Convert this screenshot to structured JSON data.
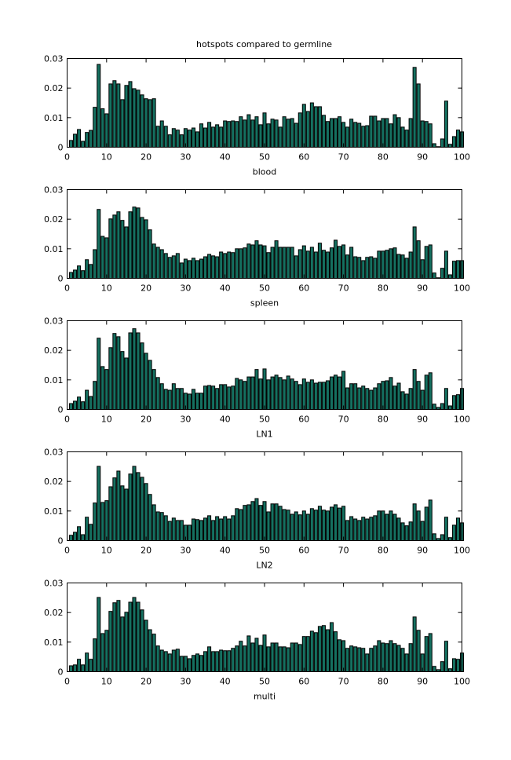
{
  "title": "hotspots compared to germline",
  "colors": {
    "bar_fill": "#157060",
    "bar_edge": "#000000",
    "axis": "#000000"
  },
  "chart_data": [
    {
      "type": "bar",
      "xlabel": "blood",
      "ylabel": "",
      "xlim": [
        0,
        100
      ],
      "ylim": [
        0,
        0.03
      ],
      "xticks": [
        "0",
        "10",
        "20",
        "30",
        "40",
        "50",
        "60",
        "70",
        "80",
        "90",
        "100"
      ],
      "yticks": [
        "0",
        "0.01",
        "0.02",
        "0.03"
      ],
      "x_start": 1,
      "values": [
        0.0023,
        0.0044,
        0.006,
        0.002,
        0.005,
        0.0057,
        0.0135,
        0.028,
        0.013,
        0.0113,
        0.0214,
        0.0225,
        0.0214,
        0.0161,
        0.0209,
        0.0222,
        0.0198,
        0.0193,
        0.0177,
        0.0164,
        0.0161,
        0.0164,
        0.0071,
        0.0089,
        0.0071,
        0.0042,
        0.0063,
        0.0058,
        0.0042,
        0.0063,
        0.0058,
        0.0065,
        0.0052,
        0.0079,
        0.0065,
        0.0084,
        0.0068,
        0.0076,
        0.0068,
        0.0089,
        0.0087,
        0.0089,
        0.0087,
        0.0103,
        0.0092,
        0.011,
        0.0092,
        0.0103,
        0.0076,
        0.0116,
        0.0079,
        0.0095,
        0.0092,
        0.0068,
        0.0103,
        0.0095,
        0.0097,
        0.0081,
        0.0116,
        0.0145,
        0.0121,
        0.015,
        0.0137,
        0.0137,
        0.0108,
        0.0087,
        0.0097,
        0.0097,
        0.0103,
        0.0084,
        0.0068,
        0.0095,
        0.0084,
        0.0081,
        0.0071,
        0.0073,
        0.0105,
        0.0105,
        0.0089,
        0.0097,
        0.0097,
        0.0079,
        0.011,
        0.01,
        0.0068,
        0.0058,
        0.0097,
        0.027,
        0.0214,
        0.0089,
        0.0087,
        0.0079,
        0.0012,
        0.0002,
        0.0028,
        0.0156,
        0.001,
        0.0036,
        0.0058,
        0.0052
      ]
    },
    {
      "type": "bar",
      "xlabel": "spleen",
      "ylabel": "",
      "xlim": [
        0,
        100
      ],
      "ylim": [
        0,
        0.03
      ],
      "xticks": [
        "0",
        "10",
        "20",
        "30",
        "40",
        "50",
        "60",
        "70",
        "80",
        "90",
        "100"
      ],
      "yticks": [
        "0",
        "0.01",
        "0.02",
        "0.03"
      ],
      "x_start": 1,
      "values": [
        0.002,
        0.0028,
        0.0042,
        0.0026,
        0.0063,
        0.0047,
        0.0097,
        0.0233,
        0.0142,
        0.0137,
        0.0201,
        0.0214,
        0.0225,
        0.0196,
        0.0174,
        0.0225,
        0.0241,
        0.0238,
        0.0206,
        0.0198,
        0.0164,
        0.0116,
        0.0105,
        0.0097,
        0.0084,
        0.0071,
        0.0076,
        0.0084,
        0.0052,
        0.0065,
        0.006,
        0.0068,
        0.006,
        0.0065,
        0.0073,
        0.0081,
        0.0076,
        0.0073,
        0.0089,
        0.0084,
        0.0089,
        0.0087,
        0.01,
        0.01,
        0.0103,
        0.0116,
        0.0113,
        0.0127,
        0.0113,
        0.011,
        0.0087,
        0.0105,
        0.0127,
        0.0105,
        0.0105,
        0.0105,
        0.0105,
        0.0076,
        0.0097,
        0.011,
        0.0092,
        0.0105,
        0.0089,
        0.0119,
        0.0095,
        0.0089,
        0.0103,
        0.0129,
        0.0108,
        0.0113,
        0.0079,
        0.0105,
        0.0073,
        0.0071,
        0.006,
        0.0071,
        0.0073,
        0.0068,
        0.0092,
        0.0092,
        0.0095,
        0.01,
        0.0103,
        0.0081,
        0.0079,
        0.0068,
        0.0089,
        0.0174,
        0.0127,
        0.0063,
        0.0108,
        0.0113,
        0.0018,
        0.0002,
        0.0034,
        0.0092,
        0.0012,
        0.0058,
        0.006,
        0.006
      ]
    },
    {
      "type": "bar",
      "xlabel": "LN1",
      "ylabel": "",
      "xlim": [
        0,
        100
      ],
      "ylim": [
        0,
        0.03
      ],
      "xticks": [
        "0",
        "10",
        "20",
        "30",
        "40",
        "50",
        "60",
        "70",
        "80",
        "90",
        "100"
      ],
      "yticks": [
        "0",
        "0.01",
        "0.02",
        "0.03"
      ],
      "x_start": 1,
      "values": [
        0.002,
        0.0028,
        0.0042,
        0.0026,
        0.0065,
        0.0044,
        0.0095,
        0.0241,
        0.0145,
        0.0135,
        0.0209,
        0.0257,
        0.0246,
        0.0196,
        0.0174,
        0.0259,
        0.0273,
        0.0259,
        0.0225,
        0.019,
        0.0166,
        0.0135,
        0.0108,
        0.0087,
        0.0068,
        0.0065,
        0.0087,
        0.0071,
        0.0071,
        0.0055,
        0.0052,
        0.0068,
        0.0055,
        0.0055,
        0.0079,
        0.0081,
        0.0079,
        0.0071,
        0.0084,
        0.0084,
        0.0076,
        0.0079,
        0.0105,
        0.01,
        0.0095,
        0.011,
        0.011,
        0.0135,
        0.0103,
        0.0137,
        0.01,
        0.011,
        0.0116,
        0.0108,
        0.01,
        0.0113,
        0.0103,
        0.0095,
        0.0084,
        0.0103,
        0.0092,
        0.01,
        0.0089,
        0.0092,
        0.0092,
        0.0097,
        0.011,
        0.0116,
        0.011,
        0.0129,
        0.0073,
        0.0087,
        0.0087,
        0.0073,
        0.0079,
        0.0071,
        0.0065,
        0.0073,
        0.0087,
        0.0095,
        0.0097,
        0.0108,
        0.0079,
        0.0089,
        0.006,
        0.0052,
        0.0071,
        0.0135,
        0.0095,
        0.0065,
        0.0116,
        0.0124,
        0.0018,
        0.0007,
        0.002,
        0.0071,
        0.0012,
        0.0047,
        0.005,
        0.0071
      ]
    },
    {
      "type": "bar",
      "xlabel": "LN2",
      "ylabel": "",
      "xlim": [
        0,
        100
      ],
      "ylim": [
        0,
        0.03
      ],
      "xticks": [
        "0",
        "10",
        "20",
        "30",
        "40",
        "50",
        "60",
        "70",
        "80",
        "90",
        "100"
      ],
      "yticks": [
        "0",
        "0.01",
        "0.02",
        "0.03"
      ],
      "x_start": 1,
      "values": [
        0.0018,
        0.0028,
        0.0047,
        0.002,
        0.0079,
        0.0055,
        0.0127,
        0.0251,
        0.0129,
        0.0135,
        0.0182,
        0.0212,
        0.0235,
        0.0185,
        0.0174,
        0.0225,
        0.0251,
        0.023,
        0.0214,
        0.0193,
        0.0156,
        0.0121,
        0.0097,
        0.0095,
        0.0084,
        0.0065,
        0.0076,
        0.0068,
        0.0068,
        0.0052,
        0.0052,
        0.0073,
        0.0071,
        0.0068,
        0.0076,
        0.0084,
        0.0068,
        0.0081,
        0.0073,
        0.0081,
        0.0073,
        0.0084,
        0.0108,
        0.0105,
        0.0119,
        0.0121,
        0.0132,
        0.0142,
        0.0119,
        0.0132,
        0.0097,
        0.0124,
        0.0124,
        0.0116,
        0.0105,
        0.0103,
        0.0089,
        0.0097,
        0.0087,
        0.01,
        0.0089,
        0.0108,
        0.0103,
        0.0116,
        0.0103,
        0.01,
        0.0113,
        0.0121,
        0.011,
        0.0116,
        0.0068,
        0.0081,
        0.0073,
        0.0068,
        0.0079,
        0.0073,
        0.0079,
        0.0084,
        0.01,
        0.01,
        0.0089,
        0.01,
        0.0089,
        0.0076,
        0.006,
        0.005,
        0.0063,
        0.0124,
        0.01,
        0.0065,
        0.0113,
        0.0137,
        0.0023,
        0.0007,
        0.002,
        0.0079,
        0.001,
        0.0052,
        0.0076,
        0.006
      ]
    },
    {
      "type": "bar",
      "xlabel": "multi",
      "ylabel": "",
      "xlim": [
        0,
        100
      ],
      "ylim": [
        0,
        0.03
      ],
      "xticks": [
        "0",
        "10",
        "20",
        "30",
        "40",
        "50",
        "60",
        "70",
        "80",
        "90",
        "100"
      ],
      "yticks": [
        "0",
        "0.01",
        "0.02",
        "0.03"
      ],
      "x_start": 1,
      "values": [
        0.002,
        0.0023,
        0.0042,
        0.0023,
        0.0063,
        0.0042,
        0.0111,
        0.0251,
        0.0129,
        0.014,
        0.0204,
        0.0233,
        0.0241,
        0.0185,
        0.0201,
        0.0235,
        0.0251,
        0.0235,
        0.0209,
        0.0174,
        0.0142,
        0.0127,
        0.0087,
        0.0073,
        0.0068,
        0.006,
        0.0073,
        0.0076,
        0.0052,
        0.0052,
        0.0044,
        0.0055,
        0.006,
        0.0055,
        0.0068,
        0.0084,
        0.0068,
        0.0068,
        0.0073,
        0.0071,
        0.0071,
        0.0079,
        0.0087,
        0.0103,
        0.0087,
        0.0121,
        0.0097,
        0.0113,
        0.0089,
        0.0124,
        0.0084,
        0.0097,
        0.0097,
        0.0084,
        0.0084,
        0.0081,
        0.0097,
        0.0097,
        0.0092,
        0.0119,
        0.0119,
        0.0137,
        0.0132,
        0.0153,
        0.0156,
        0.0142,
        0.0166,
        0.0135,
        0.0108,
        0.0105,
        0.0079,
        0.0087,
        0.0084,
        0.0081,
        0.0079,
        0.006,
        0.0079,
        0.0087,
        0.0105,
        0.0097,
        0.0095,
        0.0105,
        0.0095,
        0.0089,
        0.0079,
        0.006,
        0.0095,
        0.0185,
        0.014,
        0.006,
        0.0119,
        0.0129,
        0.0018,
        0.0007,
        0.0034,
        0.0103,
        0.001,
        0.0044,
        0.0042,
        0.0063
      ]
    }
  ]
}
